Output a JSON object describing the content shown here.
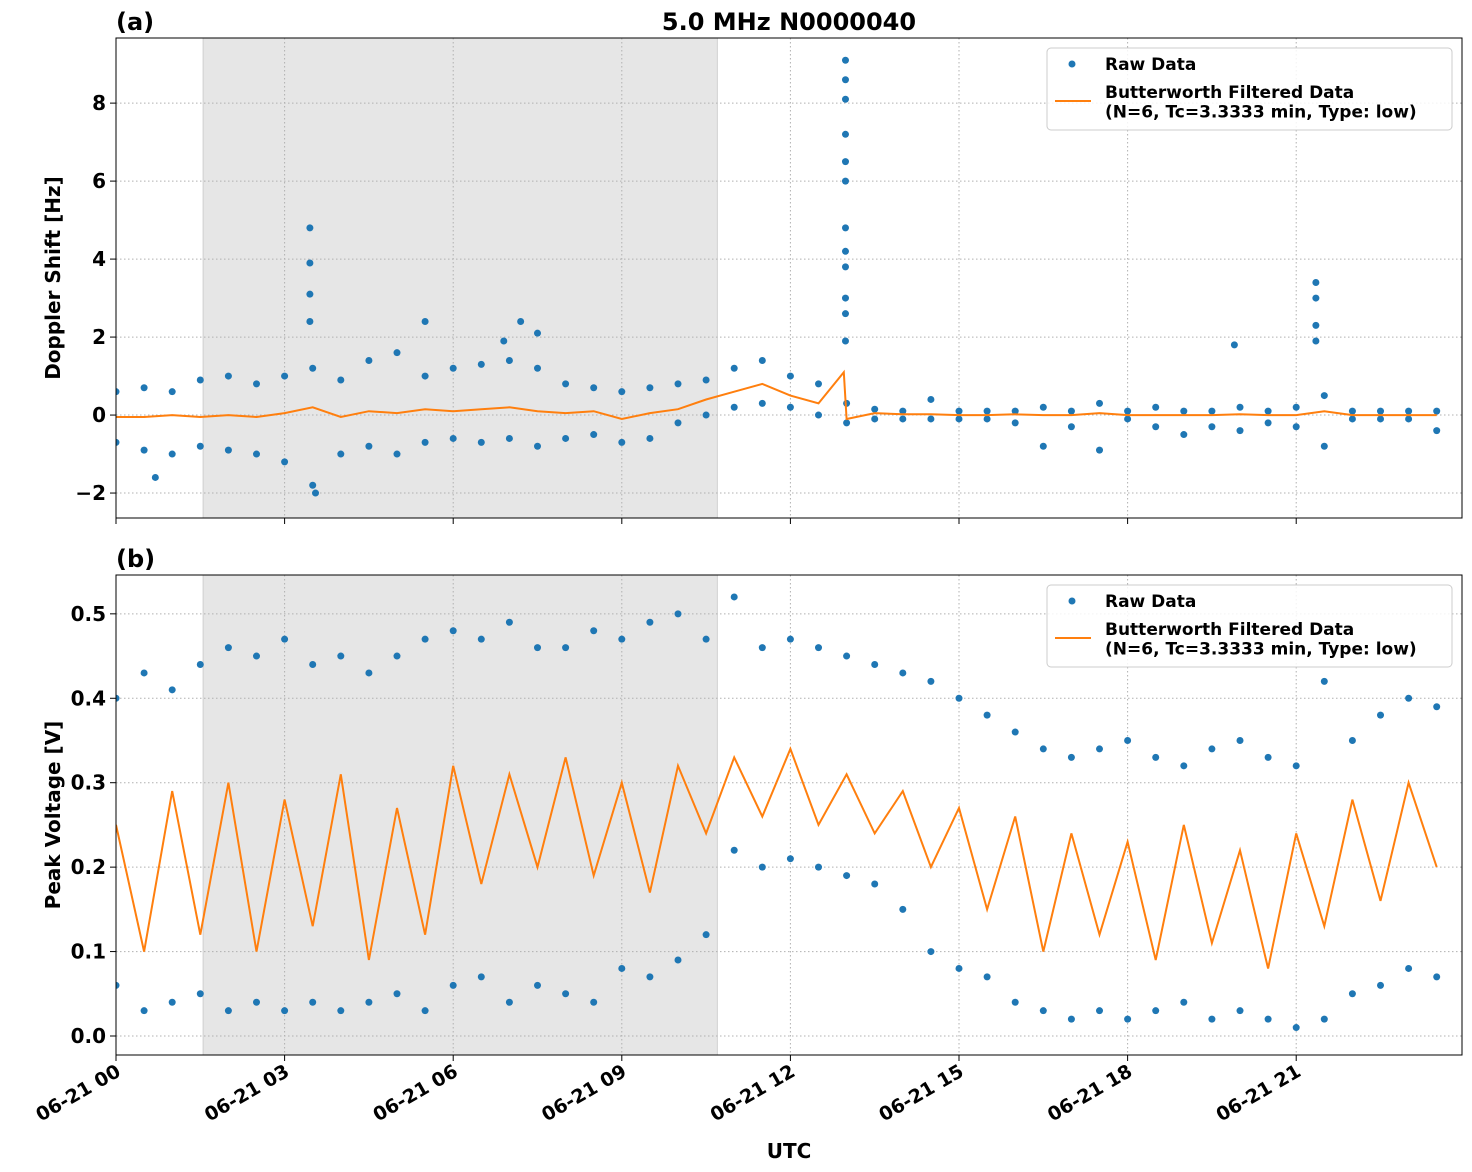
{
  "chart_data": [
    {
      "type": "scatter",
      "title": "5.0 MHz N0000040",
      "panel_label": "(a)",
      "ylabel": "Doppler Shift [Hz]",
      "xlim": [
        0,
        23.95
      ],
      "xticks": [
        0,
        3,
        6,
        9,
        12,
        15,
        18,
        21
      ],
      "ylim": [
        -2.64,
        9.67
      ],
      "yticks": [
        {
          "value": -2,
          "label": "−2"
        },
        0,
        2,
        4,
        6,
        8
      ],
      "grid": true,
      "legend": "upper right",
      "shade": [
        1.55,
        10.7
      ],
      "shade_color": "#e6e6e6",
      "series": [
        {
          "name": "Raw Data",
          "type": "scatter",
          "color": "#1f77b4",
          "x": [
            0,
            0.5,
            1,
            1.5,
            2,
            2.5,
            3,
            3.5,
            4,
            4.5,
            5,
            5.5,
            6,
            6.5,
            7,
            7.5,
            8,
            8.5,
            9,
            9.5,
            10,
            10.5,
            11,
            11.5,
            12,
            12.5,
            13,
            13.5,
            14,
            14.5,
            15,
            15.5,
            16,
            16.5,
            17,
            17.5,
            18,
            18.5,
            19,
            19.5,
            20,
            20.5,
            21,
            21.5,
            22,
            22.5,
            23,
            23.5,
            0,
            0.5,
            1,
            1.5,
            2,
            2.5,
            3,
            3.5,
            4,
            4.5,
            5,
            5.5,
            6,
            6.5,
            7,
            7.5,
            8,
            8.5,
            9,
            9.5,
            10,
            10.5,
            11,
            11.5,
            12,
            12.5,
            13,
            13.5,
            14,
            14.5,
            15,
            15.5,
            16,
            16.5,
            17,
            17.5,
            18,
            18.5,
            19,
            19.5,
            20,
            20.5,
            21,
            21.5,
            22,
            22.5,
            23,
            23.5,
            3.45,
            3.45,
            3.45,
            3.45,
            12.98,
            12.98,
            12.98,
            12.98,
            12.98,
            12.98,
            12.98,
            12.98,
            12.98,
            12.98,
            12.98,
            12.98,
            21.35,
            21.35,
            21.35,
            21.35,
            19.9,
            5.5,
            7.2,
            7.5,
            6.9,
            3.55,
            0.7
          ],
          "values": [
            0.6,
            0.7,
            0.6,
            0.9,
            1.0,
            0.8,
            1.0,
            1.2,
            0.9,
            1.4,
            1.6,
            1.0,
            1.2,
            1.3,
            1.4,
            1.2,
            0.8,
            0.7,
            0.6,
            0.7,
            0.8,
            0.9,
            1.2,
            1.4,
            1.0,
            0.8,
            0.3,
            0.15,
            0.1,
            0.4,
            0.1,
            0.1,
            0.1,
            0.2,
            0.1,
            0.3,
            0.1,
            0.2,
            0.1,
            0.1,
            0.2,
            0.1,
            0.2,
            0.5,
            0.1,
            0.1,
            0.1,
            0.1,
            -0.7,
            -0.9,
            -1.0,
            -0.8,
            -0.9,
            -1.0,
            -1.2,
            -1.8,
            -1.0,
            -0.8,
            -1.0,
            -0.7,
            -0.6,
            -0.7,
            -0.6,
            -0.8,
            -0.6,
            -0.5,
            -0.7,
            -0.6,
            -0.2,
            0.0,
            0.2,
            0.3,
            0.2,
            0.0,
            -0.2,
            -0.1,
            -0.1,
            -0.1,
            -0.1,
            -0.1,
            -0.2,
            -0.8,
            -0.3,
            -0.9,
            -0.1,
            -0.3,
            -0.5,
            -0.3,
            -0.4,
            -0.2,
            -0.3,
            -0.8,
            -0.1,
            -0.1,
            -0.1,
            -0.4,
            4.8,
            3.9,
            3.1,
            2.4,
            9.1,
            8.6,
            8.1,
            7.2,
            6.5,
            6.0,
            4.8,
            4.2,
            3.8,
            3.0,
            2.6,
            1.9,
            3.4,
            3.0,
            2.3,
            1.9,
            1.8,
            2.4,
            2.4,
            2.1,
            1.9,
            -2.0,
            -1.6
          ]
        },
        {
          "name": "Butterworth Filtered Data\n(N=6, Tc=3.3333 min, Type: low)",
          "type": "line",
          "color": "#ff7f0e",
          "x": [
            0,
            0.5,
            1,
            1.5,
            2,
            2.5,
            3,
            3.5,
            4,
            4.5,
            5,
            5.5,
            6,
            6.5,
            7,
            7.5,
            8,
            8.5,
            9,
            9.5,
            10,
            10.5,
            11,
            11.5,
            12,
            12.5,
            12.95,
            13,
            13.5,
            14,
            14.5,
            15,
            15.5,
            16,
            16.5,
            17,
            17.5,
            18,
            18.5,
            19,
            19.5,
            20,
            20.5,
            21,
            21.5,
            22,
            22.5,
            23,
            23.5
          ],
          "values": [
            -0.05,
            -0.05,
            0.0,
            -0.05,
            0.0,
            -0.05,
            0.05,
            0.2,
            -0.05,
            0.1,
            0.05,
            0.15,
            0.1,
            0.15,
            0.2,
            0.1,
            0.05,
            0.1,
            -0.1,
            0.05,
            0.15,
            0.4,
            0.6,
            0.8,
            0.5,
            0.3,
            1.1,
            -0.1,
            0.05,
            0.02,
            0.02,
            0.0,
            0.0,
            0.02,
            0.0,
            0.0,
            0.05,
            0.0,
            0.0,
            0.0,
            0.0,
            0.02,
            0.0,
            0.0,
            0.1,
            0.0,
            0.0,
            0.0,
            0.0
          ]
        }
      ]
    },
    {
      "type": "scatter",
      "panel_label": "(b)",
      "ylabel": "Peak Voltage [V]",
      "xlabel": "UTC",
      "xlim": [
        0,
        23.95
      ],
      "xticks": [
        {
          "value": 0,
          "label": "06-21 00"
        },
        {
          "value": 3,
          "label": "06-21 03"
        },
        {
          "value": 6,
          "label": "06-21 06"
        },
        {
          "value": 9,
          "label": "06-21 09"
        },
        {
          "value": 12,
          "label": "06-21 12"
        },
        {
          "value": 15,
          "label": "06-21 15"
        },
        {
          "value": 18,
          "label": "06-21 18"
        },
        {
          "value": 21,
          "label": "06-21 21"
        }
      ],
      "ylim": [
        -0.0225,
        0.546
      ],
      "yticks": [
        {
          "value": 0,
          "label": "0.0"
        },
        0.1,
        0.2,
        0.3,
        0.4,
        0.5
      ],
      "grid": true,
      "legend": "upper right",
      "shade": [
        1.55,
        10.7
      ],
      "shade_color": "#e6e6e6",
      "series": [
        {
          "name": "Raw Data",
          "type": "scatter",
          "color": "#1f77b4",
          "x": [
            0,
            0.5,
            1,
            1.5,
            2,
            2.5,
            3,
            3.5,
            4,
            4.5,
            5,
            5.5,
            6,
            6.5,
            7,
            7.5,
            8,
            8.5,
            9,
            9.5,
            10,
            10.5,
            11,
            11.5,
            12,
            12.5,
            13,
            13.5,
            14,
            14.5,
            15,
            15.5,
            16,
            16.5,
            17,
            17.5,
            18,
            18.5,
            19,
            19.5,
            20,
            20.5,
            21,
            21.5,
            22,
            22.5,
            23,
            23.5,
            0,
            0.5,
            1,
            1.5,
            2,
            2.5,
            3,
            3.5,
            4,
            4.5,
            5,
            5.5,
            6,
            6.5,
            7,
            7.5,
            8,
            8.5,
            9,
            9.5,
            10,
            10.5,
            11,
            11.5,
            12,
            12.5,
            13,
            13.5,
            14,
            14.5,
            15,
            15.5,
            16,
            16.5,
            17,
            17.5,
            18,
            18.5,
            19,
            19.5,
            20,
            20.5,
            21,
            21.5,
            22,
            22.5,
            23,
            23.5
          ],
          "values": [
            0.4,
            0.43,
            0.41,
            0.44,
            0.46,
            0.45,
            0.47,
            0.44,
            0.45,
            0.43,
            0.45,
            0.47,
            0.48,
            0.47,
            0.49,
            0.46,
            0.46,
            0.48,
            0.47,
            0.49,
            0.5,
            0.47,
            0.52,
            0.46,
            0.47,
            0.46,
            0.45,
            0.44,
            0.43,
            0.42,
            0.4,
            0.38,
            0.36,
            0.34,
            0.33,
            0.34,
            0.35,
            0.33,
            0.32,
            0.34,
            0.35,
            0.33,
            0.32,
            0.42,
            0.35,
            0.38,
            0.4,
            0.39,
            0.06,
            0.03,
            0.04,
            0.05,
            0.03,
            0.04,
            0.03,
            0.04,
            0.03,
            0.04,
            0.05,
            0.03,
            0.06,
            0.07,
            0.04,
            0.06,
            0.05,
            0.04,
            0.08,
            0.07,
            0.09,
            0.12,
            0.22,
            0.2,
            0.21,
            0.2,
            0.19,
            0.18,
            0.15,
            0.1,
            0.08,
            0.07,
            0.04,
            0.03,
            0.02,
            0.03,
            0.02,
            0.03,
            0.04,
            0.02,
            0.03,
            0.02,
            0.01,
            0.02,
            0.05,
            0.06,
            0.08,
            0.07
          ]
        },
        {
          "name": "Butterworth Filtered Data\n(N=6, Tc=3.3333 min, Type: low)",
          "type": "line",
          "color": "#ff7f0e",
          "x": [
            0,
            0.5,
            1,
            1.5,
            2,
            2.5,
            3,
            3.5,
            4,
            4.5,
            5,
            5.5,
            6,
            6.5,
            7,
            7.5,
            8,
            8.5,
            9,
            9.5,
            10,
            10.5,
            11,
            11.5,
            12,
            12.5,
            13,
            13.5,
            14,
            14.5,
            15,
            15.5,
            16,
            16.5,
            17,
            17.5,
            18,
            18.5,
            19,
            19.5,
            20,
            20.5,
            21,
            21.5,
            22,
            22.5,
            23,
            23.5
          ],
          "values": [
            0.25,
            0.1,
            0.29,
            0.12,
            0.3,
            0.1,
            0.28,
            0.13,
            0.31,
            0.09,
            0.27,
            0.12,
            0.32,
            0.18,
            0.31,
            0.2,
            0.33,
            0.19,
            0.3,
            0.17,
            0.32,
            0.24,
            0.33,
            0.26,
            0.34,
            0.25,
            0.31,
            0.24,
            0.29,
            0.2,
            0.27,
            0.15,
            0.26,
            0.1,
            0.24,
            0.12,
            0.23,
            0.09,
            0.25,
            0.11,
            0.22,
            0.08,
            0.24,
            0.13,
            0.28,
            0.16,
            0.3,
            0.2
          ]
        }
      ]
    }
  ]
}
